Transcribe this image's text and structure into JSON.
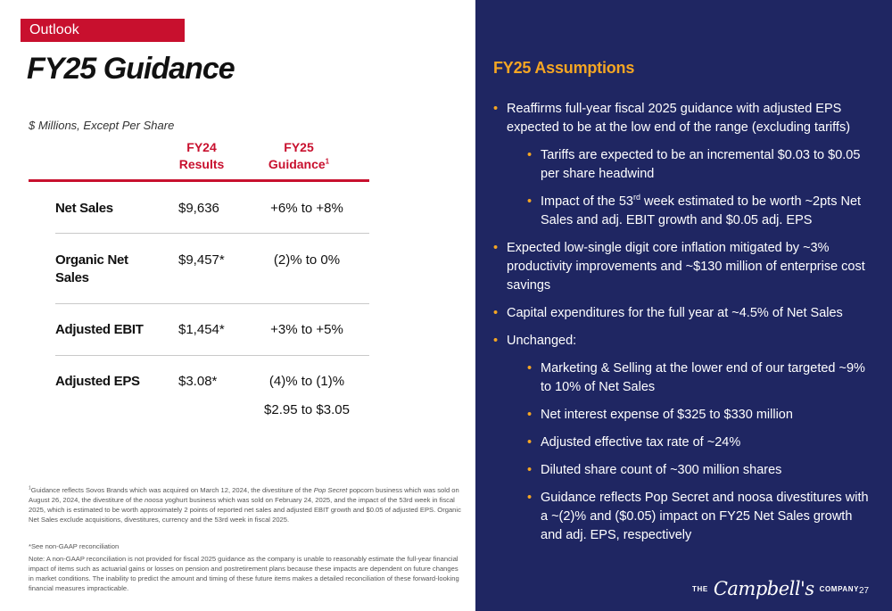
{
  "section_tag": "Outlook",
  "title": "FY25 Guidance",
  "units_note": "$ Millions, Except Per Share",
  "table": {
    "col1_line1": "FY24",
    "col1_line2": "Results",
    "col2_line1": "FY25",
    "col2_line2": "Guidance",
    "col2_sup": "1",
    "rows": [
      {
        "label": "Net Sales",
        "fy24": "$9,636",
        "fy25": "+6% to +8%"
      },
      {
        "label_line1": "Organic Net",
        "label_line2": "Sales",
        "fy24": "$9,457*",
        "fy25": "(2)% to 0%"
      },
      {
        "label": "Adjusted EBIT",
        "fy24": "$1,454*",
        "fy25": "+3% to +5%"
      },
      {
        "label": "Adjusted EPS",
        "fy24": "$3.08*",
        "fy25": "(4)% to (1)%",
        "fy25_line2": "$2.95 to $3.05"
      }
    ]
  },
  "footnotes": {
    "note1_sup": "1",
    "note1_a": "Guidance reflects Sovos Brands which was acquired on March 12, 2024, the divestiture of the ",
    "note1_em1": "Pop Secret",
    "note1_b": " popcorn business which was sold on August 26, 2024, the divestiture of the ",
    "note1_em2": "noosa",
    "note1_c": " yoghurt business which was sold on February 24, 2025, and the impact of the 53rd week in fiscal 2025, which is estimated to be worth approximately 2 points of reported net sales and adjusted EBIT growth and $0.05 of adjusted EPS. Organic Net Sales exclude acquisitions, divestitures, currency and the 53rd week in fiscal 2025.",
    "note2": "*See non-GAAP reconciliation",
    "note3": "Note: A non-GAAP reconciliation is not provided for fiscal 2025 guidance as the company is unable to reasonably estimate the full-year financial impact of items such as actuarial gains or losses on pension and postretirement plans because these impacts are dependent on future changes in market conditions. The inability to predict the amount and timing of these future items makes a detailed reconciliation of these forward-looking financial measures impracticable."
  },
  "assumptions": {
    "title": "FY25 Assumptions",
    "b1": "Reaffirms full-year fiscal 2025 guidance with adjusted EPS expected to be at the low end of the range (excluding tariffs)",
    "b1_1": "Tariffs are expected to be an incremental $0.03 to $0.05 per share headwind",
    "b1_2_a": "Impact of the 53",
    "b1_2_sup": "rd",
    "b1_2_b": " week estimated to be worth ~2pts Net Sales and adj. EBIT growth and $0.05 adj. EPS",
    "b2": "Expected low-single digit core inflation mitigated by ~3% productivity improvements and ~$130 million of enterprise cost savings",
    "b3": "Capital expenditures for the full year at ~4.5% of Net Sales",
    "b4": "Unchanged:",
    "b4_1": "Marketing & Selling at the lower end of our targeted ~9% to 10% of Net Sales",
    "b4_2": "Net interest expense of $325 to $330 million",
    "b4_3": "Adjusted effective tax rate of ~24%",
    "b4_4": "Diluted share count of ~300 million shares",
    "b4_5": "Guidance reflects Pop Secret and noosa divestitures with a ~(2)% and ($0.05) impact on FY25 Net Sales growth and adj. EPS, respectively"
  },
  "logo": {
    "the": "THE",
    "name": "Campbell's",
    "company": "COMPANY"
  },
  "page_number": "27",
  "colors": {
    "accent_red": "#c8102e",
    "navy": "#1f2662",
    "gold": "#f5a623"
  }
}
